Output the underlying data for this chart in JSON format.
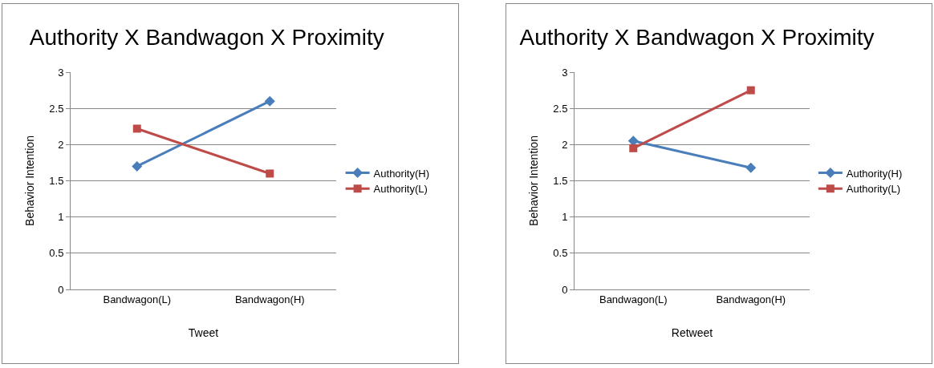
{
  "chart_data": [
    {
      "type": "line",
      "title": "Authority X Bandwagon X Proximity",
      "xlabel": "Tweet",
      "ylabel": "Behavior Intention",
      "categories": [
        "Bandwagon(L)",
        "Bandwagon(H)"
      ],
      "ylim": [
        0,
        3
      ],
      "yticks": [
        0,
        0.5,
        1,
        1.5,
        2,
        2.5,
        3
      ],
      "grid": "y",
      "legend": "right",
      "series": [
        {
          "name": "Authority(H)",
          "color": "#4a7ebb",
          "marker": "diamond",
          "values": [
            1.7,
            2.6
          ]
        },
        {
          "name": "Authority(L)",
          "color": "#be4b48",
          "marker": "square",
          "values": [
            2.22,
            1.6
          ]
        }
      ]
    },
    {
      "type": "line",
      "title": "Authority X Bandwagon X Proximity",
      "xlabel": "Retweet",
      "ylabel": "Behavior Intention",
      "categories": [
        "Bandwagon(L)",
        "Bandwagon(H)"
      ],
      "ylim": [
        0,
        3
      ],
      "yticks": [
        0,
        0.5,
        1,
        1.5,
        2,
        2.5,
        3
      ],
      "grid": "y",
      "legend": "right",
      "series": [
        {
          "name": "Authority(H)",
          "color": "#4a7ebb",
          "marker": "diamond",
          "values": [
            2.05,
            1.68
          ]
        },
        {
          "name": "Authority(L)",
          "color": "#be4b48",
          "marker": "square",
          "values": [
            1.95,
            2.75
          ]
        }
      ]
    }
  ]
}
